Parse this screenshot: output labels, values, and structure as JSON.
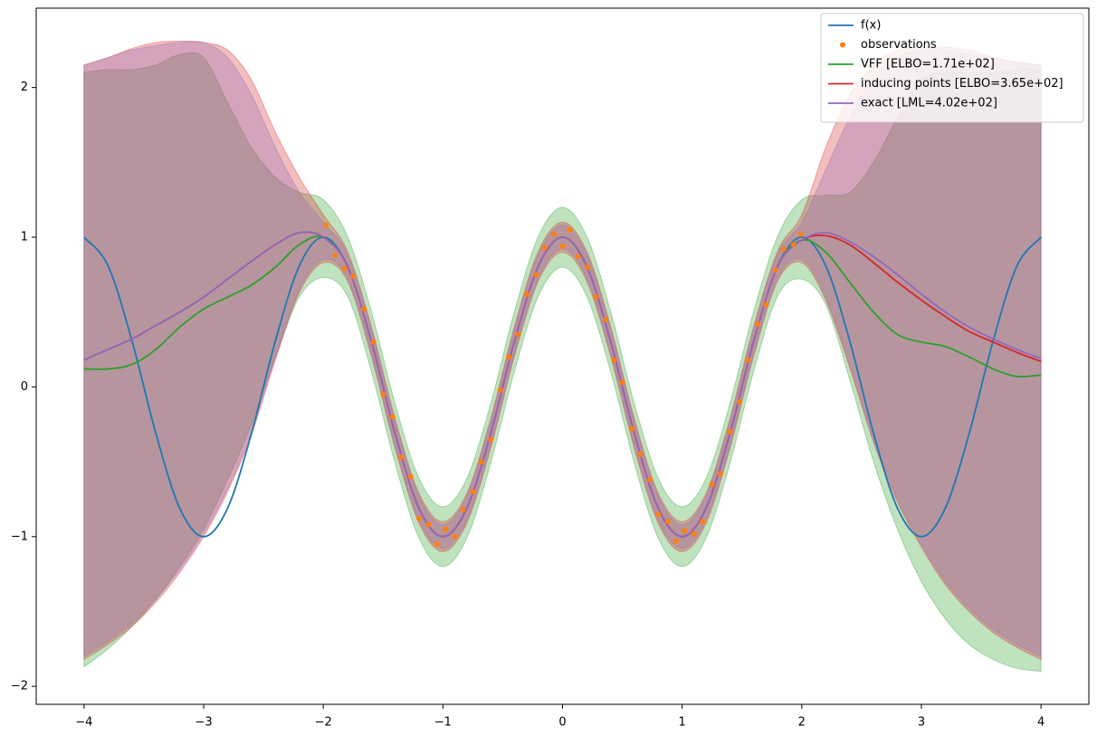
{
  "chart_data": {
    "type": "line",
    "x": [
      -4,
      -3.8,
      -3.6,
      -3.4,
      -3.2,
      -3,
      -2.8,
      -2.6,
      -2.4,
      -2.2,
      -2,
      -1.8,
      -1.6,
      -1.4,
      -1.2,
      -1,
      -0.8,
      -0.6,
      -0.4,
      -0.2,
      0,
      0.2,
      0.4,
      0.6,
      0.8,
      1,
      1.2,
      1.4,
      1.6,
      1.8,
      2,
      2.2,
      2.4,
      2.6,
      2.8,
      3,
      3.2,
      3.4,
      3.6,
      3.8,
      4
    ],
    "xlim": [
      -4.4,
      4.4
    ],
    "ylim": [
      -2.12,
      2.53
    ],
    "xticks": [
      {
        "value": -4,
        "label": "−4"
      },
      {
        "value": -3,
        "label": "−3"
      },
      {
        "value": -2,
        "label": "−2"
      },
      {
        "value": -1,
        "label": "−1"
      },
      0,
      1,
      2,
      3,
      4
    ],
    "yticks": [
      {
        "value": -2,
        "label": "−2"
      },
      {
        "value": -1,
        "label": "−1"
      },
      0,
      1,
      2
    ],
    "legend": "upper right",
    "series": [
      {
        "name": "f(x)",
        "color": "#1f77b4",
        "values": [
          1,
          0.81,
          0.31,
          -0.31,
          -0.81,
          -1,
          -0.81,
          -0.31,
          0.31,
          0.81,
          1,
          0.81,
          0.31,
          -0.31,
          -0.81,
          -1,
          -0.81,
          -0.31,
          0.31,
          0.81,
          1,
          0.81,
          0.31,
          -0.31,
          -0.81,
          -1,
          -0.81,
          -0.31,
          0.31,
          0.81,
          1,
          0.81,
          0.31,
          -0.31,
          -0.81,
          -1,
          -0.81,
          -0.31,
          0.31,
          0.81,
          1
        ]
      },
      {
        "name": "observations",
        "color": "#ff7f0e",
        "marker": "dot",
        "x": [
          -1.98,
          -1.9,
          -1.82,
          -1.75,
          -1.66,
          -1.58,
          -1.5,
          -1.42,
          -1.35,
          -1.27,
          -1.2,
          -1.12,
          -1.05,
          -0.98,
          -0.9,
          -0.83,
          -0.75,
          -0.68,
          -0.6,
          -0.52,
          -0.45,
          -0.37,
          -0.3,
          -0.22,
          -0.15,
          -0.07,
          0,
          0.06,
          0.13,
          0.21,
          0.28,
          0.36,
          0.43,
          0.5,
          0.58,
          0.65,
          0.73,
          0.8,
          0.88,
          0.95,
          1.02,
          1.1,
          1.17,
          1.25,
          1.32,
          1.4,
          1.48,
          1.55,
          1.63,
          1.7,
          1.78,
          1.85,
          1.93,
          1.99
        ],
        "values": [
          1.08,
          0.88,
          0.79,
          0.74,
          0.52,
          0.3,
          -0.05,
          -0.2,
          -0.47,
          -0.6,
          -0.88,
          -0.92,
          -1.05,
          -0.95,
          -1,
          -0.82,
          -0.7,
          -0.5,
          -0.35,
          -0.02,
          0.2,
          0.35,
          0.62,
          0.75,
          0.93,
          1.02,
          0.94,
          1.05,
          0.87,
          0.8,
          0.6,
          0.45,
          0.18,
          0.03,
          -0.28,
          -0.45,
          -0.62,
          -0.85,
          -0.9,
          -1.03,
          -0.96,
          -0.98,
          -0.9,
          -0.65,
          -0.58,
          -0.3,
          -0.1,
          0.18,
          0.42,
          0.55,
          0.78,
          0.92,
          0.95,
          1.02
        ]
      },
      {
        "name": "VFF [ELBO=1.71e+02]",
        "color": "#2ca02c",
        "values": [
          0.12,
          0.12,
          0.15,
          0.25,
          0.4,
          0.52,
          0.6,
          0.68,
          0.8,
          0.95,
          1,
          0.81,
          0.31,
          -0.31,
          -0.81,
          -1,
          -0.81,
          -0.31,
          0.31,
          0.81,
          1,
          0.81,
          0.31,
          -0.31,
          -0.81,
          -1,
          -0.81,
          -0.31,
          0.31,
          0.81,
          0.98,
          0.9,
          0.7,
          0.5,
          0.35,
          0.3,
          0.27,
          0.2,
          0.12,
          0.07,
          0.08
        ],
        "lower": [
          -1.87,
          -1.75,
          -1.6,
          -1.42,
          -1.2,
          -0.95,
          -0.62,
          -0.25,
          0.2,
          0.6,
          0.73,
          0.61,
          0.11,
          -0.51,
          -1.01,
          -1.2,
          -1.01,
          -0.51,
          0.11,
          0.61,
          0.8,
          0.61,
          0.11,
          -0.51,
          -1.01,
          -1.2,
          -1.01,
          -0.51,
          0.11,
          0.61,
          0.72,
          0.55,
          0.05,
          -0.5,
          -0.95,
          -1.3,
          -1.55,
          -1.72,
          -1.82,
          -1.88,
          -1.9
        ],
        "upper": [
          2.1,
          2.12,
          2.12,
          2.15,
          2.22,
          2.2,
          1.9,
          1.6,
          1.4,
          1.3,
          1.25,
          1.01,
          0.51,
          -0.11,
          -0.61,
          -0.8,
          -0.61,
          -0.11,
          0.51,
          1.01,
          1.2,
          1.01,
          0.51,
          -0.11,
          -0.61,
          -0.8,
          -0.61,
          -0.11,
          0.51,
          1.01,
          1.25,
          1.28,
          1.3,
          1.5,
          1.8,
          2.05,
          2.1,
          2.1,
          2.1,
          2.12,
          2.12
        ]
      },
      {
        "name": "inducing points [ELBO=3.65e+02]",
        "color": "#d62728",
        "values": [
          0.18,
          0.25,
          0.32,
          0.41,
          0.5,
          0.6,
          0.72,
          0.84,
          0.95,
          1.03,
          1,
          0.81,
          0.31,
          -0.31,
          -0.81,
          -1,
          -0.81,
          -0.31,
          0.31,
          0.81,
          1,
          0.81,
          0.31,
          -0.31,
          -0.81,
          -1,
          -0.81,
          -0.31,
          0.31,
          0.81,
          0.98,
          1.01,
          0.95,
          0.83,
          0.7,
          0.58,
          0.47,
          0.37,
          0.3,
          0.23,
          0.17
        ],
        "lower": [
          -1.82,
          -1.72,
          -1.6,
          -1.44,
          -1.24,
          -1,
          -0.7,
          -0.32,
          0.18,
          0.63,
          0.83,
          0.71,
          0.21,
          -0.41,
          -0.91,
          -1.1,
          -0.91,
          -0.41,
          0.21,
          0.71,
          0.9,
          0.71,
          0.21,
          -0.41,
          -0.91,
          -1.1,
          -0.91,
          -0.41,
          0.21,
          0.71,
          0.83,
          0.58,
          0.13,
          -0.37,
          -0.77,
          -1.07,
          -1.32,
          -1.5,
          -1.64,
          -1.74,
          -1.82
        ],
        "upper": [
          2.15,
          2.2,
          2.26,
          2.3,
          2.31,
          2.3,
          2.25,
          2.05,
          1.7,
          1.4,
          1.15,
          0.91,
          0.41,
          -0.21,
          -0.71,
          -0.9,
          -0.71,
          -0.21,
          0.41,
          0.91,
          1.1,
          0.91,
          0.41,
          -0.21,
          -0.71,
          -0.9,
          -0.71,
          -0.21,
          0.41,
          0.91,
          1.15,
          1.6,
          1.95,
          2.15,
          2.25,
          2.27,
          2.27,
          2.25,
          2.2,
          2.17,
          2.15
        ]
      },
      {
        "name": "exact [LML=4.02e+02]",
        "color": "#9467bd",
        "values": [
          0.18,
          0.25,
          0.32,
          0.41,
          0.5,
          0.6,
          0.72,
          0.84,
          0.95,
          1.03,
          1,
          0.81,
          0.31,
          -0.31,
          -0.81,
          -1,
          -0.81,
          -0.31,
          0.31,
          0.81,
          1,
          0.81,
          0.31,
          -0.31,
          -0.81,
          -1,
          -0.81,
          -0.31,
          0.31,
          0.81,
          0.98,
          1.03,
          0.97,
          0.87,
          0.75,
          0.62,
          0.5,
          0.4,
          0.32,
          0.25,
          0.19
        ],
        "lower": [
          -1.8,
          -1.7,
          -1.58,
          -1.42,
          -1.22,
          -0.98,
          -0.68,
          -0.3,
          0.2,
          0.65,
          0.85,
          0.73,
          0.23,
          -0.39,
          -0.89,
          -1.08,
          -0.89,
          -0.39,
          0.23,
          0.73,
          0.92,
          0.73,
          0.23,
          -0.39,
          -0.89,
          -1.08,
          -0.89,
          -0.39,
          0.23,
          0.73,
          0.85,
          0.6,
          0.15,
          -0.35,
          -0.75,
          -1.05,
          -1.3,
          -1.48,
          -1.62,
          -1.72,
          -1.8
        ],
        "upper": [
          2.15,
          2.2,
          2.25,
          2.28,
          2.3,
          2.3,
          2.2,
          1.95,
          1.6,
          1.3,
          1.1,
          0.89,
          0.39,
          -0.23,
          -0.73,
          -0.92,
          -0.73,
          -0.23,
          0.39,
          0.89,
          1.08,
          0.89,
          0.39,
          -0.23,
          -0.73,
          -0.92,
          -0.73,
          -0.23,
          0.39,
          0.89,
          1.1,
          1.45,
          1.8,
          2.05,
          2.2,
          2.25,
          2.25,
          2.22,
          2.2,
          2.17,
          2.15
        ]
      }
    ]
  }
}
